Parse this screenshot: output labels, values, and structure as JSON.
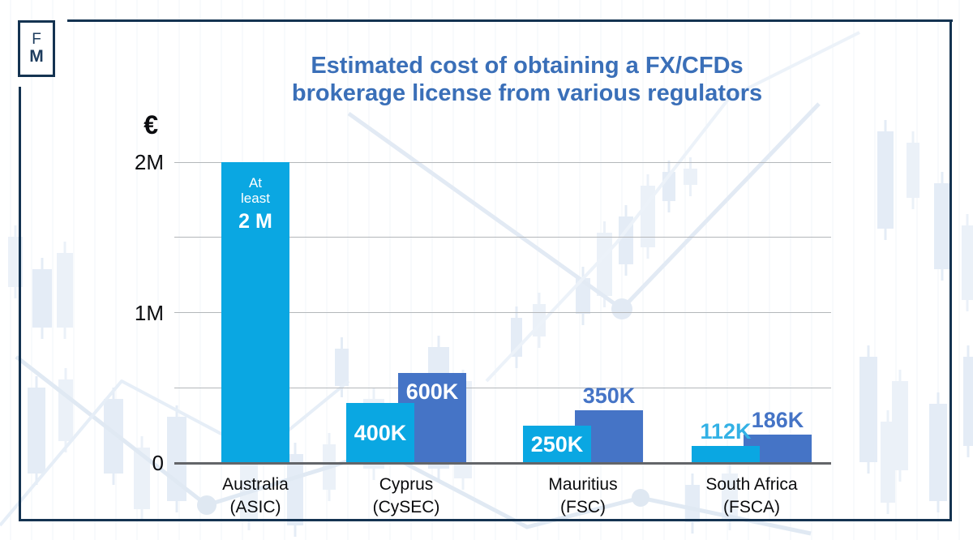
{
  "page": {
    "logo": {
      "f": "F",
      "m": "M"
    },
    "colors": {
      "frame": "#143351",
      "title": "#3A6FB8"
    }
  },
  "chart_data": {
    "type": "bar",
    "title_lines": [
      "Estimated cost of obtaining a FX/CFDs",
      "brokerage license from various regulators"
    ],
    "currency_symbol": "€",
    "ylabel": "€",
    "ylim": [
      0,
      2000000
    ],
    "ytick_labels": [
      {
        "label": "2M",
        "value": 2000000
      },
      {
        "label": "1M",
        "value": 1000000
      },
      {
        "label": "0",
        "value": 0
      }
    ],
    "gridline_values": [
      500000,
      1000000,
      1500000,
      2000000
    ],
    "grid": "horizontal",
    "legend": "none",
    "colors": {
      "light": "#0AA7E2",
      "dark": "#4574C6",
      "light_label": "#33B1E5",
      "dark_label": "#4574C6",
      "inside_label": "#FFFFFF"
    },
    "groups": [
      {
        "category": "Australia",
        "regulator": "(ASIC)",
        "bars": [
          {
            "value": 2000000,
            "display": "2 M",
            "qualifier_lines": [
              "At",
              "least"
            ],
            "color": "light",
            "label_pos": "inside-top-stacked"
          }
        ]
      },
      {
        "category": "Cyprus",
        "regulator": "(CySEC)",
        "bars": [
          {
            "value": 400000,
            "display": "400K",
            "color": "light",
            "label_pos": "inside-middle"
          },
          {
            "value": 600000,
            "display": "600K",
            "color": "dark",
            "label_pos": "inside-top"
          }
        ]
      },
      {
        "category": "Mauritius",
        "regulator": "(FSC)",
        "bars": [
          {
            "value": 250000,
            "display": "250K",
            "color": "light",
            "label_pos": "inside-middle"
          },
          {
            "value": 350000,
            "display": "350K",
            "color": "dark",
            "label_pos": "above"
          }
        ]
      },
      {
        "category": "South Africa",
        "regulator": "(FSCA)",
        "bars": [
          {
            "value": 112000,
            "display": "112K",
            "color": "light",
            "label_pos": "above"
          },
          {
            "value": 186000,
            "display": "186K",
            "color": "dark",
            "label_pos": "above"
          }
        ]
      }
    ]
  }
}
